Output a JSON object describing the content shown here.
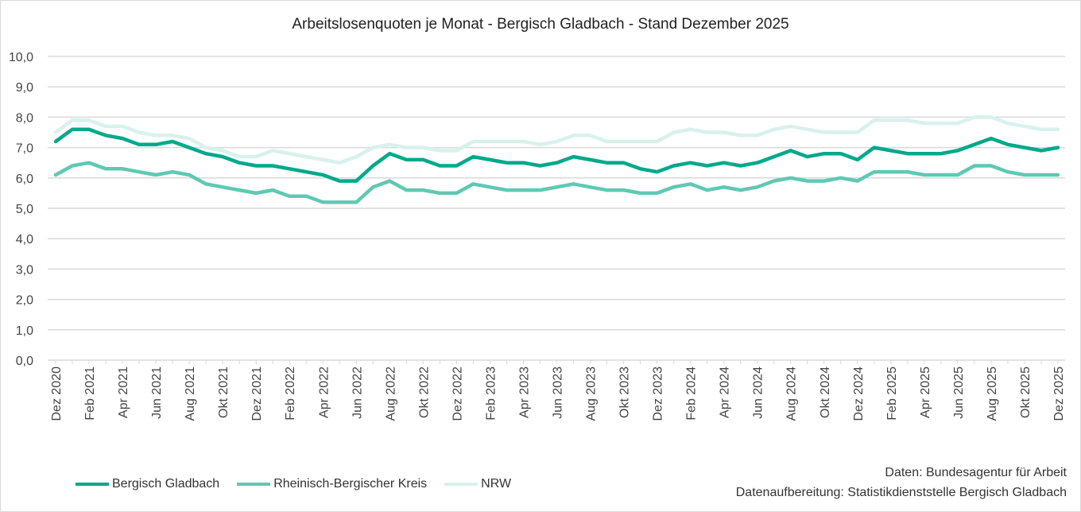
{
  "chart_data": {
    "type": "line",
    "title": "Arbeitslosenquoten je Monat - Bergisch Gladbach - Stand Dezember 2025",
    "xlabel": "",
    "ylabel": "",
    "ylim": [
      0,
      10
    ],
    "yticks": [
      "0,0",
      "1,0",
      "2,0",
      "3,0",
      "4,0",
      "5,0",
      "6,0",
      "7,0",
      "8,0",
      "9,0",
      "10,0"
    ],
    "grid": true,
    "legend_position": "bottom-left",
    "x": [
      "Dez 2020",
      "Jan 2021",
      "Feb 2021",
      "Mär 2021",
      "Apr 2021",
      "Mai 2021",
      "Jun 2021",
      "Jul 2021",
      "Aug 2021",
      "Sep 2021",
      "Okt 2021",
      "Nov 2021",
      "Dez 2021",
      "Jan 2022",
      "Feb 2022",
      "Mär 2022",
      "Apr 2022",
      "Mai 2022",
      "Jun 2022",
      "Jul 2022",
      "Aug 2022",
      "Sep 2022",
      "Okt 2022",
      "Nov 2022",
      "Dez 2022",
      "Jan 2023",
      "Feb 2023",
      "Mär 2023",
      "Apr 2023",
      "Mai 2023",
      "Jun 2023",
      "Jul 2023",
      "Aug 2023",
      "Sep 2023",
      "Okt 2023",
      "Nov 2023",
      "Dez 2023",
      "Jan 2024",
      "Feb 2024",
      "Mär 2024",
      "Apr 2024",
      "Mai 2024",
      "Jun 2024",
      "Jul 2024",
      "Aug 2024",
      "Sep 2024",
      "Okt 2024",
      "Nov 2024",
      "Dez 2024",
      "Jan 2025",
      "Feb 2025",
      "Mär 2025",
      "Apr 2025",
      "Mai 2025",
      "Jun 2025",
      "Jul 2025",
      "Aug 2025",
      "Sep 2025",
      "Okt 2025",
      "Nov 2025",
      "Dez 2025"
    ],
    "xtick_labels": [
      "Dez 2020",
      "Feb 2021",
      "Apr 2021",
      "Jun 2021",
      "Aug 2021",
      "Okt 2021",
      "Dez 2021",
      "Feb 2022",
      "Apr 2022",
      "Jun 2022",
      "Aug 2022",
      "Okt 2022",
      "Dez 2022",
      "Feb 2023",
      "Apr 2023",
      "Jun 2023",
      "Aug 2023",
      "Okt 2023",
      "Dez 2023",
      "Feb 2024",
      "Apr 2024",
      "Jun 2024",
      "Aug 2024",
      "Okt 2024",
      "Dez 2024",
      "Feb 2025",
      "Apr 2025",
      "Jun 2025",
      "Aug 2025",
      "Okt 2025",
      "Dez 2025"
    ],
    "series": [
      {
        "name": "NRW",
        "color": "#d8f1ec",
        "values": [
          7.5,
          7.9,
          7.9,
          7.7,
          7.7,
          7.5,
          7.4,
          7.4,
          7.3,
          7.0,
          6.9,
          6.7,
          6.7,
          6.9,
          6.8,
          6.7,
          6.6,
          6.5,
          6.7,
          7.0,
          7.1,
          7.0,
          7.0,
          6.9,
          6.9,
          7.2,
          7.2,
          7.2,
          7.2,
          7.1,
          7.2,
          7.4,
          7.4,
          7.2,
          7.2,
          7.2,
          7.2,
          7.5,
          7.6,
          7.5,
          7.5,
          7.4,
          7.4,
          7.6,
          7.7,
          7.6,
          7.5,
          7.5,
          7.5,
          7.9,
          7.9,
          7.9,
          7.8,
          7.8,
          7.8,
          8.0,
          8.0,
          7.8,
          7.7,
          7.6,
          7.6
        ]
      },
      {
        "name": "Rheinisch-Bergischer Kreis",
        "color": "#5fc9b2",
        "values": [
          6.1,
          6.4,
          6.5,
          6.3,
          6.3,
          6.2,
          6.1,
          6.2,
          6.1,
          5.8,
          5.7,
          5.6,
          5.5,
          5.6,
          5.4,
          5.4,
          5.2,
          5.2,
          5.2,
          5.7,
          5.9,
          5.6,
          5.6,
          5.5,
          5.5,
          5.8,
          5.7,
          5.6,
          5.6,
          5.6,
          5.7,
          5.8,
          5.7,
          5.6,
          5.6,
          5.5,
          5.5,
          5.7,
          5.8,
          5.6,
          5.7,
          5.6,
          5.7,
          5.9,
          6.0,
          5.9,
          5.9,
          6.0,
          5.9,
          6.2,
          6.2,
          6.2,
          6.1,
          6.1,
          6.1,
          6.4,
          6.4,
          6.2,
          6.1,
          6.1,
          6.1
        ]
      },
      {
        "name": "Bergisch Gladbach",
        "color": "#00a98a",
        "values": [
          7.2,
          7.6,
          7.6,
          7.4,
          7.3,
          7.1,
          7.1,
          7.2,
          7.0,
          6.8,
          6.7,
          6.5,
          6.4,
          6.4,
          6.3,
          6.2,
          6.1,
          5.9,
          5.9,
          6.4,
          6.8,
          6.6,
          6.6,
          6.4,
          6.4,
          6.7,
          6.6,
          6.5,
          6.5,
          6.4,
          6.5,
          6.7,
          6.6,
          6.5,
          6.5,
          6.3,
          6.2,
          6.4,
          6.5,
          6.4,
          6.5,
          6.4,
          6.5,
          6.7,
          6.9,
          6.7,
          6.8,
          6.8,
          6.6,
          7.0,
          6.9,
          6.8,
          6.8,
          6.8,
          6.9,
          7.1,
          7.3,
          7.1,
          7.0,
          6.9,
          7.0
        ]
      }
    ],
    "legend": [
      "Bergisch Gladbach",
      "Rheinisch-Bergischer Kreis",
      "NRW"
    ],
    "annotations": [
      "Daten: Bundesagentur für Arbeit",
      "Datenaufbereitung: Statistikdienststelle Bergisch Gladbach"
    ]
  }
}
